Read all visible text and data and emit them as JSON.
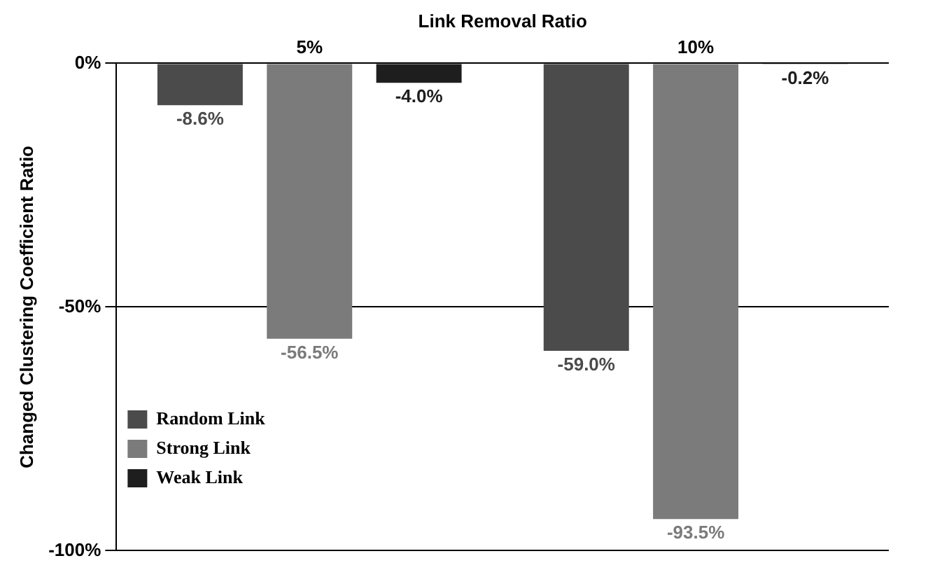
{
  "chart_data": {
    "type": "bar",
    "xlabel": "Link Removal Ratio",
    "ylabel": "Changed Clustering Coefficient Ratio",
    "categories": [
      "5%",
      "10%"
    ],
    "series": [
      {
        "name": "Random Link",
        "color": "#4b4b4b",
        "values": [
          -8.6,
          -59.0
        ],
        "value_labels": [
          "-8.6%",
          "-59.0%"
        ]
      },
      {
        "name": "Strong Link",
        "color": "#7b7b7b",
        "values": [
          -56.5,
          -93.5
        ],
        "value_labels": [
          "-56.5%",
          "-93.5%"
        ]
      },
      {
        "name": "Weak Link",
        "color": "#1e1e1e",
        "values": [
          -4.0,
          -0.2
        ],
        "value_labels": [
          "-4.0%",
          "-0.2%"
        ]
      }
    ],
    "ylim": [
      -100,
      0
    ],
    "yticks": [
      {
        "value": 0,
        "label": "0%"
      },
      {
        "value": -50,
        "label": "-50%"
      },
      {
        "value": -100,
        "label": "-100%"
      }
    ],
    "grid": "y",
    "legend": "bottom left"
  }
}
